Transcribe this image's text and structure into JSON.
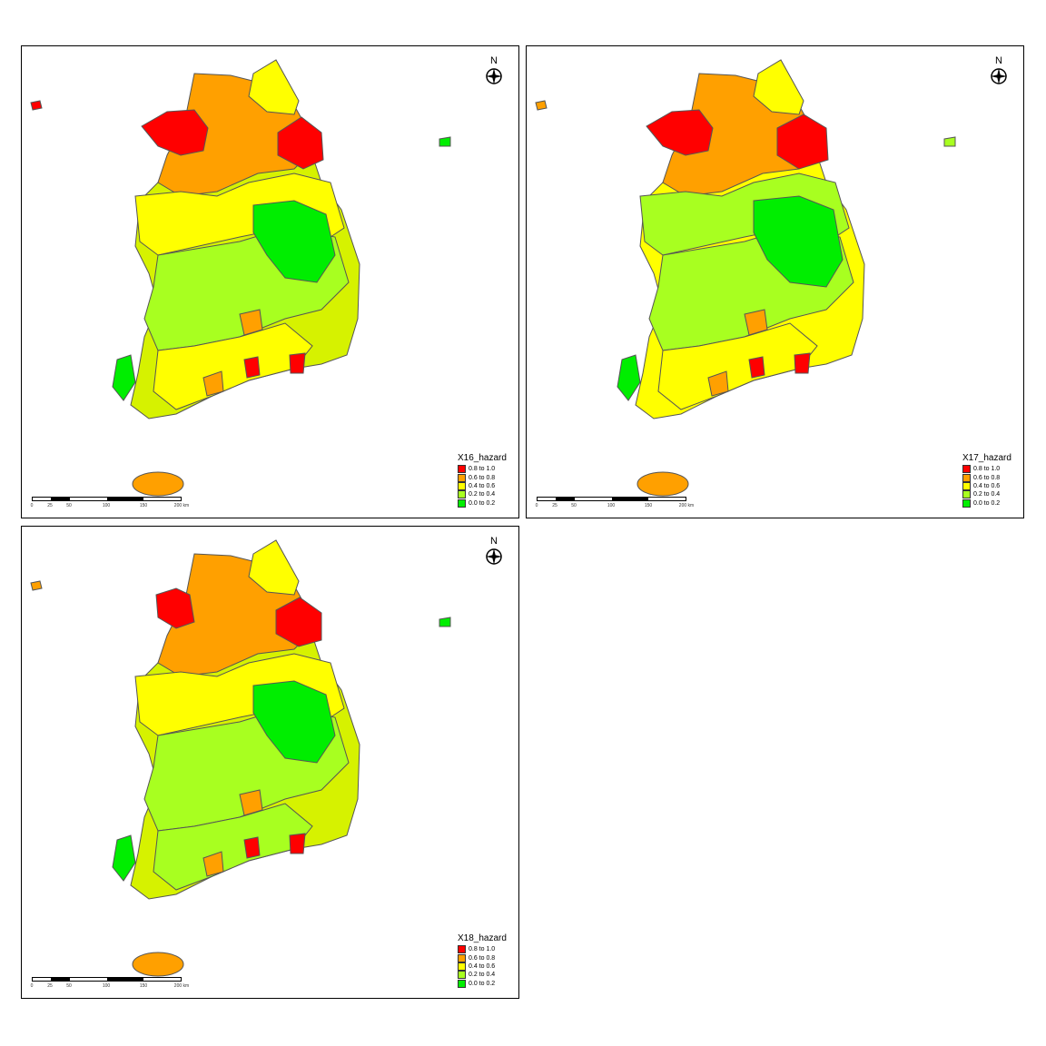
{
  "north_arrow": {
    "letter": "N",
    "icon": "compass-rose-icon"
  },
  "legend": {
    "classes": [
      {
        "label": "0.8 to 1.0",
        "color": "#ff0000"
      },
      {
        "label": "0.6 to 0.8",
        "color": "#ffa000"
      },
      {
        "label": "0.4 to 0.6",
        "color": "#ffff00"
      },
      {
        "label": "0.2 to 0.4",
        "color": "#a8ff20"
      },
      {
        "label": "0.0 to 0.2",
        "color": "#00ee00"
      }
    ]
  },
  "scale_bar": {
    "ticks": [
      "0",
      "25",
      "50",
      "100",
      "150",
      "200 km"
    ]
  },
  "panels": [
    {
      "id": "x16",
      "legend_title": "X16_hazard"
    },
    {
      "id": "x17",
      "legend_title": "X17_hazard"
    },
    {
      "id": "x18",
      "legend_title": "X18_hazard"
    }
  ]
}
